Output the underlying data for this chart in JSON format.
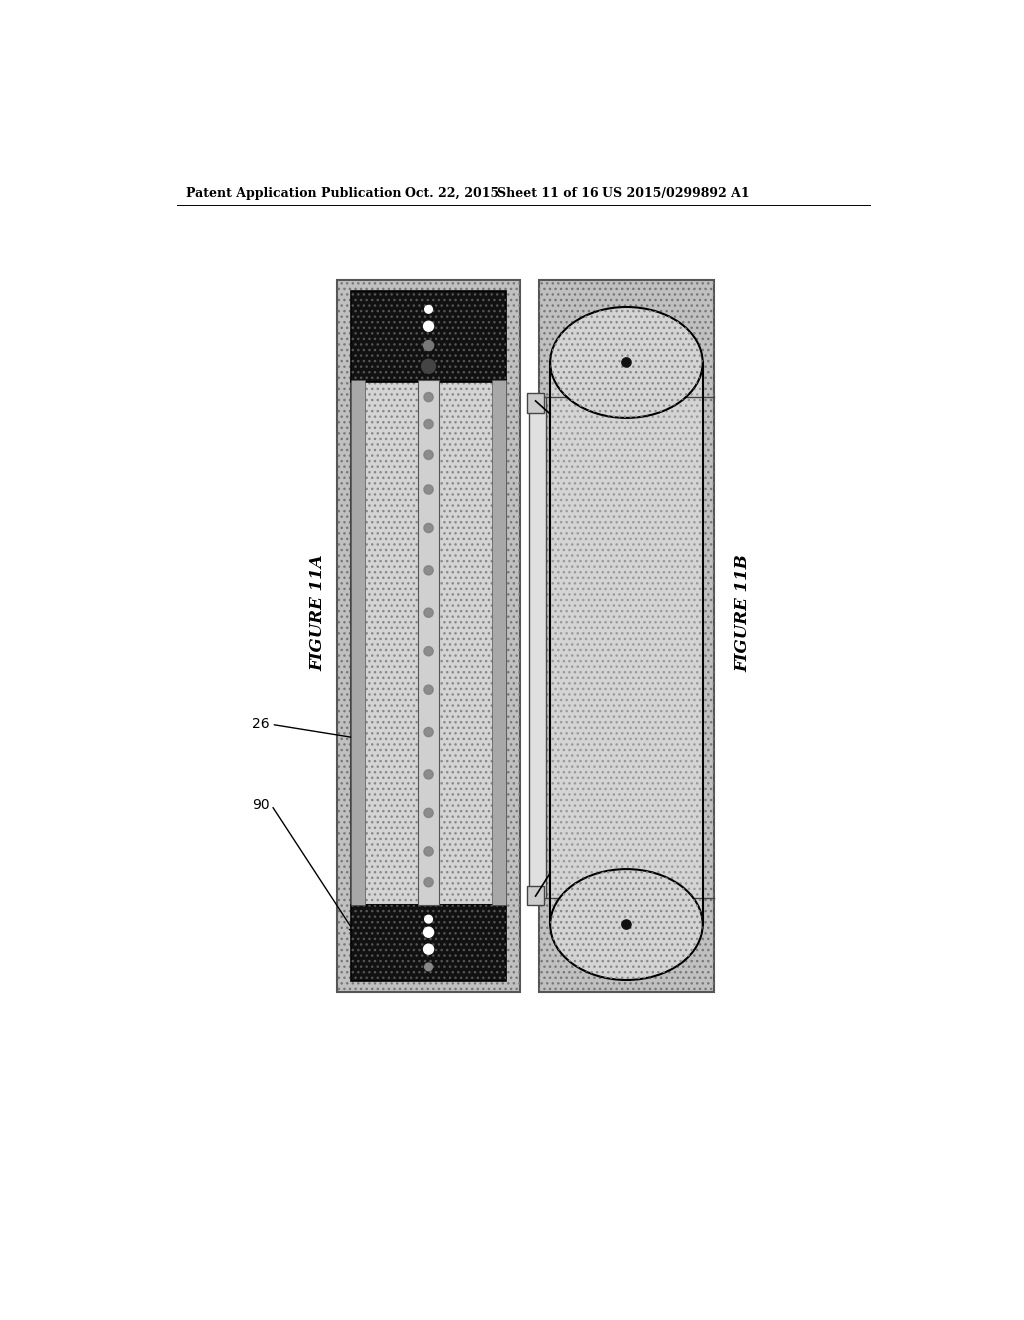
{
  "bg_color": "#ffffff",
  "header_text": "Patent Application Publication",
  "header_date": "Oct. 22, 2015",
  "header_sheet": "Sheet 11 of 16",
  "header_patent": "US 2015/0299892 A1",
  "fig11a_label": "FIGURE 11A",
  "fig11b_label": "FIGURE 11B",
  "label_26": "26",
  "label_90": "90",
  "outer_gray": "#c0c0c0",
  "inner_gray": "#d4d4d4",
  "very_dark": "#111111",
  "mid_strip": "#b8b8b8",
  "light_inner": "#e8e8e8"
}
